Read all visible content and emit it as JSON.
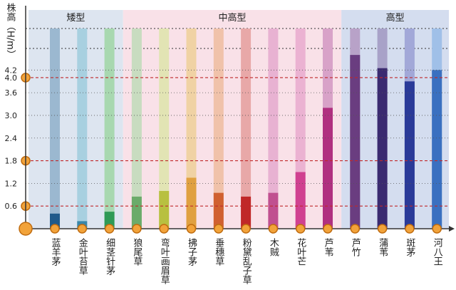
{
  "chart_data": {
    "type": "bar",
    "y_label": "株高（H/m）",
    "ylim": [
      0,
      5.3
    ],
    "yticks": [
      0.6,
      1.2,
      1.8,
      2.4,
      {
        "value": 3,
        "label": "3.0"
      },
      3.6,
      {
        "value": 4,
        "label": "4.0"
      },
      4.2
    ],
    "tick_highlight": [
      true,
      false,
      true,
      false,
      false,
      false,
      true,
      false
    ],
    "groups": [
      {
        "name": "矮型",
        "background": "#dde5f0",
        "categories": [
          "蓝羊茅",
          "金叶苔草",
          "细茎针茅"
        ],
        "values": [
          0.4,
          0.2,
          0.45
        ],
        "colors": [
          "#1f5a8a",
          "#3a86a8",
          "#2e9a55"
        ],
        "track_colors": [
          "#9bb8d0",
          "#a8d0e0",
          "#a8d8b0"
        ]
      },
      {
        "name": "中高型",
        "background": "#f9e1e8",
        "categories": [
          "狼尾草",
          "弯叶画眉草",
          "拂子茅",
          "垂穗草",
          "粉黛乱子草",
          "木贼",
          "花叶芒",
          "芦苇"
        ],
        "values": [
          0.85,
          1.0,
          1.35,
          0.95,
          0.85,
          0.95,
          1.5,
          3.2
        ],
        "colors": [
          "#6bab6a",
          "#b8c040",
          "#e0a040",
          "#d06030",
          "#c02828",
          "#c05090",
          "#d04090",
          "#b03080"
        ],
        "track_colors": [
          "#c8dcc0",
          "#e2e4b4",
          "#f0d2a4",
          "#f0c2aa",
          "#e8a8a8",
          "#e8b2d2",
          "#ebb2d2",
          "#d8a2c8"
        ]
      },
      {
        "name": "高型",
        "background": "#d4ddef",
        "categories": [
          "芦竹",
          "蒲苇",
          "斑茅",
          "河八王"
        ],
        "values": [
          4.6,
          4.25,
          3.9,
          4.2
        ],
        "colors": [
          "#6a3d80",
          "#3a2a70",
          "#2a3a98",
          "#3a70c0"
        ],
        "track_colors": [
          "#b8a2c8",
          "#a8a2c8",
          "#a2a8d8",
          "#a0c0e8"
        ]
      }
    ]
  }
}
